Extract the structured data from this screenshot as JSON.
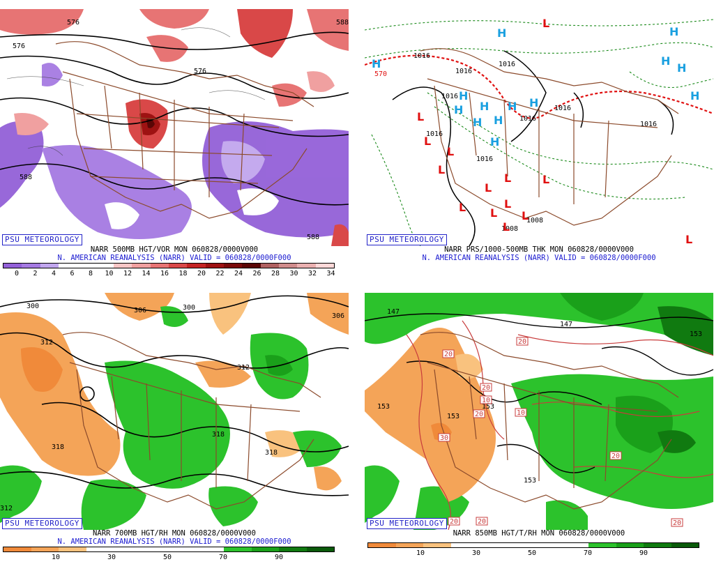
{
  "panels": [
    {
      "id": "p500",
      "badge": "PSU METEOROLOGY",
      "title": "NARR 500MB HGT/VOR MON 060828/0000V000",
      "subtitle": "N. AMERICAN REANALYSIS (NARR) VALID = 060828/0000F000",
      "contour_labels": [
        "576",
        "576",
        "588",
        "588",
        "588",
        "576"
      ],
      "scale_colors": [
        "#9360d8",
        "#a57ae2",
        "#c1a6ee",
        "#ffffff",
        "#ffffff",
        "#ffffff",
        "#f7c6c6",
        "#f0a0a0",
        "#e77474",
        "#d94848",
        "#c42424",
        "#9e1212",
        "#7a0a0a",
        "#5a0606",
        "#b06060",
        "#d08c8c",
        "#eab0b0",
        "#ffd8d8"
      ],
      "scale_ticks": [
        "0",
        "2",
        "4",
        "6",
        "8",
        "10",
        "12",
        "14",
        "16",
        "18",
        "20",
        "22",
        "24",
        "26",
        "28",
        "30",
        "32",
        "34"
      ]
    },
    {
      "id": "pthk",
      "badge": "PSU METEOROLOGY",
      "title": "NARR PRS/1000-500MB THK MON 060828/0000V000",
      "subtitle": "N. AMERICAN REANALYSIS (NARR) VALID = 060828/0000F000",
      "contour_labels": [
        "1016",
        "1016",
        "1016",
        "1016",
        "1016",
        "1016",
        "1016",
        "1016",
        "1008",
        "1008",
        "1016",
        "570"
      ],
      "high_symbol": "H",
      "low_symbol": "L",
      "colors": {
        "high": "#1aa0e0",
        "low": "#e01010",
        "thickness": "#e01010",
        "pressure": "#000000",
        "thin": "#1a8a1a"
      }
    },
    {
      "id": "p700",
      "badge": "PSU METEOROLOGY",
      "title": "NARR 700MB HGT/RH MON 060828/0000V000",
      "subtitle": "N. AMERICAN REANALYSIS (NARR) VALID = 060828/0000F000",
      "contour_labels": [
        "300",
        "306",
        "300",
        "306",
        "312",
        "312",
        "318",
        "318",
        "318",
        "312"
      ],
      "scale_colors": [
        "#f08a3a",
        "#f4a458",
        "#f9c27e",
        "#ffffff",
        "#ffffff",
        "#ffffff",
        "#ffffff",
        "#ffffff",
        "#2cc22c",
        "#1aa01a",
        "#107a10",
        "#0a5a0a"
      ],
      "scale_ticks": [
        "10",
        "30",
        "50",
        "70",
        "90"
      ]
    },
    {
      "id": "p850",
      "badge": "PSU METEOROLOGY",
      "title": "NARR 850MB HGT/T/RH MON 060828/0000V000",
      "subtitle": "",
      "contour_labels": [
        "147",
        "147",
        "153",
        "153",
        "153",
        "153",
        "153"
      ],
      "temp_labels": [
        "20",
        "20",
        "20",
        "10",
        "20",
        "10",
        "30",
        "20",
        "20",
        "20",
        "20"
      ],
      "scale_colors": [
        "#f08a3a",
        "#f4a458",
        "#f9c27e",
        "#ffffff",
        "#ffffff",
        "#ffffff",
        "#ffffff",
        "#ffffff",
        "#2cc22c",
        "#1aa01a",
        "#107a10",
        "#0a5a0a"
      ],
      "scale_ticks": [
        "10",
        "30",
        "50",
        "70",
        "90"
      ]
    }
  ]
}
